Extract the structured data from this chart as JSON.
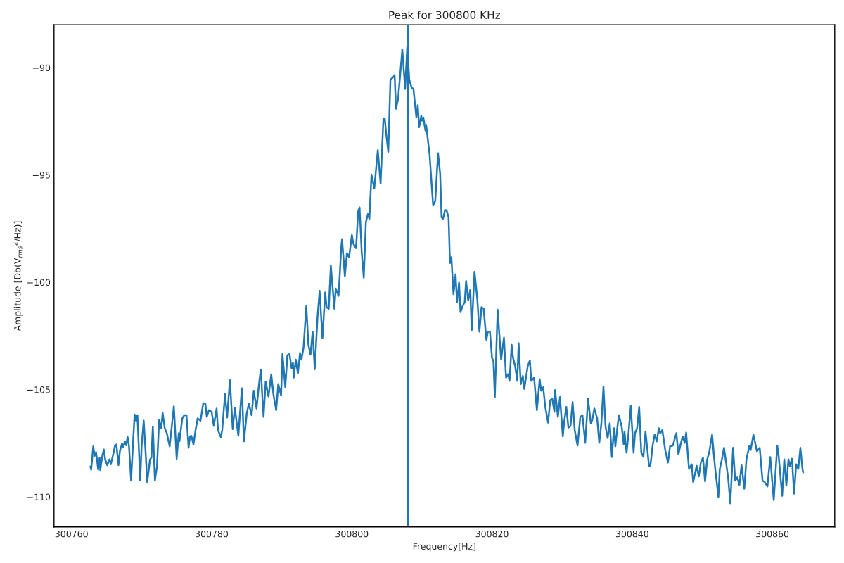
{
  "chart_data": {
    "type": "line",
    "title": "Peak for 300800 KHz",
    "xlabel": "Frequency[Hz]",
    "ylabel": "Amplitude [Db(V$_{rms}$$^{2}$/Hz)]",
    "x": [
      300762.7,
      300762.8,
      300763.1,
      300763.3,
      300763.5,
      300763.8,
      300764.0,
      300764.1,
      300764.4,
      300764.6,
      300764.8,
      300765.1,
      300765.4,
      300765.6,
      300766.0,
      300766.2,
      300766.4,
      300766.7,
      300766.9,
      300767.2,
      300767.4,
      300767.6,
      300767.8,
      300768.0,
      300768.2,
      300768.5,
      300768.8,
      300769.0,
      300769.2,
      300769.4,
      300769.8,
      300770.0,
      300770.3,
      300770.6,
      300770.8,
      300771.2,
      300771.4,
      300771.6,
      300771.9,
      300772.2,
      300772.5,
      300772.8,
      300773.0,
      300773.3,
      300773.6,
      300774.0,
      300774.3,
      300774.6,
      300775.0,
      300775.3,
      300775.4,
      300775.8,
      300776.1,
      300776.4,
      300776.7,
      300776.9,
      300777.1,
      300777.4,
      300777.7,
      300778.0,
      300778.4,
      300778.8,
      300779.1,
      300779.3,
      300779.6,
      300780.0,
      300780.3,
      300780.7,
      300780.9,
      300781.3,
      300781.5,
      300781.9,
      300782.2,
      300782.6,
      300783.0,
      300783.3,
      300783.8,
      300784.3,
      300784.6,
      300785.0,
      300785.3,
      300785.7,
      300786.0,
      300786.4,
      300786.7,
      300787.0,
      300787.4,
      300787.7,
      300788.1,
      300788.5,
      300788.8,
      300789.2,
      300789.5,
      300789.9,
      300790.1,
      300790.5,
      300790.8,
      300791.1,
      300791.4,
      300791.6,
      300791.7,
      300792.0,
      300792.3,
      300792.6,
      300792.8,
      300793.1,
      300793.5,
      300793.8,
      300794.1,
      300794.4,
      300794.7,
      300795.1,
      300795.4,
      300795.8,
      300796.2,
      300796.4,
      300796.7,
      300797.0,
      300797.5,
      300797.7,
      300798.1,
      300798.5,
      300798.6,
      300799.0,
      300799.3,
      300799.6,
      300800.0,
      300800.2,
      300800.6,
      300800.9,
      300801.1,
      300801.4,
      300801.7,
      300802.0,
      300802.3,
      300802.5,
      300802.8,
      300803.2,
      300803.7,
      300804.1,
      300804.5,
      300804.7,
      300804.9,
      300805.2,
      300805.5,
      300805.9,
      300806.1,
      300806.3,
      300806.6,
      300807.2,
      300807.6,
      300807.9,
      300808.2,
      300808.5,
      300808.8,
      300809.2,
      300809.4,
      300809.6,
      300809.9,
      300810.0,
      300810.2,
      300810.5,
      300810.6,
      300811.1,
      300811.4,
      300811.6,
      300811.9,
      300812.3,
      300812.6,
      300812.8,
      300813.0,
      300813.3,
      300813.5,
      300813.8,
      300814.0,
      300814.2,
      300814.5,
      300814.8,
      300815.0,
      300815.3,
      300815.5,
      300815.8,
      300816.1,
      300816.3,
      300816.6,
      300816.9,
      300817.1,
      300817.5,
      300817.9,
      300818.2,
      300818.5,
      300818.8,
      300819.2,
      300819.4,
      300819.7,
      300820.0,
      300820.2,
      300820.4,
      300820.8,
      300821.1,
      300821.3,
      300821.7,
      300822.0,
      300822.3,
      300822.5,
      300822.8,
      300823.0,
      300823.3,
      300823.6,
      300823.8,
      300824.1,
      300824.4,
      300824.6,
      300825.1,
      300825.4,
      300825.6,
      300826.0,
      300826.4,
      300826.8,
      300827.0,
      300827.3,
      300827.6,
      300828.0,
      300828.3,
      300828.6,
      300828.9,
      300829.0,
      300829.4,
      300829.7,
      300830.1,
      300830.3,
      300830.6,
      300830.9,
      300831.2,
      300831.5,
      300831.8,
      300832.2,
      300832.6,
      300832.9,
      300833.3,
      300833.7,
      300834.1,
      300834.3,
      300834.6,
      300835.0,
      300835.3,
      300835.6,
      300835.9,
      300836.2,
      300836.5,
      300836.8,
      300837.1,
      300837.4,
      300837.6,
      300837.9,
      300838.1,
      300838.5,
      300838.8,
      300838.9,
      300839.2,
      300839.5,
      300839.8,
      300840.2,
      300840.4,
      300840.7,
      300841.0,
      300841.3,
      300841.6,
      300841.9,
      300842.4,
      300842.6,
      300842.9,
      300843.2,
      300843.5,
      300843.8,
      300844.0,
      300844.3,
      300844.7,
      300845.1,
      300845.4,
      300845.8,
      300846.3,
      300846.6,
      300846.9,
      300847.2,
      300847.5,
      300847.7,
      300848.1,
      300848.5,
      300848.7,
      300849.2,
      300849.5,
      300849.8,
      300850.1,
      300850.4,
      300850.7,
      300851.0,
      300851.4,
      300851.8,
      300852.3,
      300852.5,
      300852.8,
      300853.1,
      300853.4,
      300853.7,
      300854.0,
      300854.4,
      300854.7,
      300855.0,
      300855.3,
      300855.6,
      300856.0,
      300856.3,
      300856.7,
      300856.9,
      300857.3,
      300857.6,
      300857.8,
      300858.2,
      300858.6,
      300858.9,
      300859.3,
      300859.7,
      300860.2,
      300860.7,
      300860.9,
      300861.4,
      300861.7,
      300862.0,
      300862.3,
      300862.5,
      300862.8,
      300863.1,
      300863.4,
      300863.7,
      300864.0,
      300864.3,
      300864.4
    ],
    "series": [
      {
        "color": "#1f77b4",
        "values": [
          -108.58,
          -108.73,
          -107.64,
          -108.09,
          -107.91,
          -108.73,
          -108.17,
          -108.75,
          -108.06,
          -107.79,
          -108.25,
          -108.52,
          -108.25,
          -108.48,
          -107.94,
          -107.61,
          -107.56,
          -108.52,
          -107.87,
          -107.52,
          -107.68,
          -107.41,
          -107.59,
          -107.21,
          -107.64,
          -109.24,
          -107.33,
          -106.16,
          -106.45,
          -106.19,
          -109.24,
          -107.64,
          -106.45,
          -108.09,
          -109.31,
          -108.25,
          -108.17,
          -106.72,
          -109.24,
          -108.55,
          -106.42,
          -106.8,
          -106.08,
          -106.8,
          -107.03,
          -107.64,
          -106.72,
          -105.78,
          -108.22,
          -107.03,
          -107.41,
          -106.34,
          -106.19,
          -106.19,
          -107.71,
          -107.18,
          -107.15,
          -107.56,
          -106.88,
          -106.34,
          -106.45,
          -105.63,
          -105.66,
          -106.27,
          -105.96,
          -106.04,
          -106.69,
          -105.88,
          -106.88,
          -107.21,
          -106.88,
          -105.2,
          -106.3,
          -104.56,
          -106.84,
          -105.84,
          -107.15,
          -104.94,
          -107.41,
          -106.11,
          -105.66,
          -106.19,
          -105.05,
          -105.88,
          -104.89,
          -104.07,
          -106.27,
          -104.63,
          -105.32,
          -104.28,
          -105.2,
          -105.96,
          -104.74,
          -105.27,
          -103.34,
          -104.89,
          -103.4,
          -103.34,
          -104.01,
          -103.75,
          -104.44,
          -103.6,
          -104.25,
          -103.29,
          -103.6,
          -103.06,
          -101.11,
          -102.91,
          -103.37,
          -102.3,
          -104.05,
          -101.62,
          -100.4,
          -102.61,
          -100.47,
          -101.16,
          -101.23,
          -99.22,
          -101.23,
          -100.29,
          -100.63,
          -98.34,
          -97.99,
          -99.71,
          -98.64,
          -98.83,
          -97.8,
          -98.19,
          -98.41,
          -96.69,
          -96.51,
          -98.57,
          -99.79,
          -97.2,
          -96.81,
          -97.04,
          -94.98,
          -95.63,
          -93.84,
          -95.4,
          -92.39,
          -92.36,
          -93.08,
          -93.92,
          -90.56,
          -90.44,
          -90.34,
          -91.91,
          -91.45,
          -89.15,
          -90.99,
          -89.04,
          -90.56,
          -90.9,
          -91.02,
          -92.32,
          -91.75,
          -92.77,
          -92.24,
          -92.47,
          -92.32,
          -92.93,
          -92.67,
          -94.07,
          -95.52,
          -96.43,
          -96.2,
          -93.99,
          -94.95,
          -96.97,
          -97.04,
          -96.63,
          -96.63,
          -96.97,
          -99.1,
          -98.83,
          -100.55,
          -99.63,
          -100.93,
          -100.02,
          -101.39,
          -101.11,
          -100.93,
          -99.94,
          -100.85,
          -100.35,
          -102.23,
          -99.51,
          -100.78,
          -102.3,
          -101.16,
          -101.23,
          -102.68,
          -102.3,
          -102.3,
          -103.52,
          -103.67,
          -105.35,
          -101.27,
          -102.68,
          -103.6,
          -102.58,
          -104.44,
          -104.28,
          -104.59,
          -102.91,
          -103.52,
          -103.9,
          -104.59,
          -102.84,
          -104.74,
          -104.36,
          -104.97,
          -103.9,
          -103.64,
          -104.59,
          -104.44,
          -105.96,
          -104.51,
          -105.05,
          -104.89,
          -105.81,
          -106.54,
          -105.5,
          -105.43,
          -106.04,
          -105.02,
          -106.27,
          -105.35,
          -107.18,
          -106.49,
          -105.81,
          -106.77,
          -106.69,
          -105.58,
          -106.88,
          -107.61,
          -106.27,
          -106.19,
          -107.48,
          -105.43,
          -106.57,
          -106.42,
          -105.88,
          -106.34,
          -107.48,
          -106.57,
          -104.86,
          -106.72,
          -107.26,
          -106.57,
          -108.14,
          -106.8,
          -107.64,
          -106.72,
          -106.19,
          -106.72,
          -107.56,
          -106.95,
          -107.94,
          -106.95,
          -105.76,
          -107.94,
          -107.03,
          -106.8,
          -105.81,
          -107.94,
          -108.13,
          -106.95,
          -108.55,
          -108.55,
          -107.64,
          -107.1,
          -107.41,
          -106.8,
          -107.03,
          -106.88,
          -107.79,
          -108.4,
          -107.64,
          -107.61,
          -107.03,
          -108.02,
          -107.56,
          -107.18,
          -107.48,
          -107.0,
          -108.7,
          -108.48,
          -109.31,
          -108.55,
          -109.05,
          -108.4,
          -108.17,
          -109.28,
          -108.25,
          -107.91,
          -107.1,
          -108.55,
          -110.0,
          -108.7,
          -108.25,
          -107.71,
          -108.4,
          -109.13,
          -110.3,
          -107.71,
          -109.24,
          -109.09,
          -109.44,
          -108.52,
          -109.62,
          -108.25,
          -107.64,
          -107.82,
          -107.1,
          -107.56,
          -107.87,
          -107.71,
          -109.24,
          -109.31,
          -109.51,
          -108.14,
          -110.15,
          -107.61,
          -108.09,
          -109.95,
          -108.25,
          -109.47,
          -108.25,
          -108.55,
          -108.22,
          -109.85,
          -108.48,
          -108.7,
          -107.71,
          -108.7,
          -108.86
        ]
      }
    ],
    "ref_lines": [
      {
        "axis": "x",
        "value": 300808,
        "color": "#1f77b4",
        "line_style": "solid"
      }
    ],
    "xlim": [
      300757.5,
      300868.9
    ],
    "ylim": [
      -111.4,
      -88.0
    ],
    "xticks": [
      300760,
      300780,
      300800,
      300820,
      300840,
      300860
    ],
    "yticks": [
      -110,
      -105,
      -100,
      -95,
      -90
    ],
    "grid": false,
    "legend": false,
    "marker": "none",
    "line_style": "solid"
  }
}
